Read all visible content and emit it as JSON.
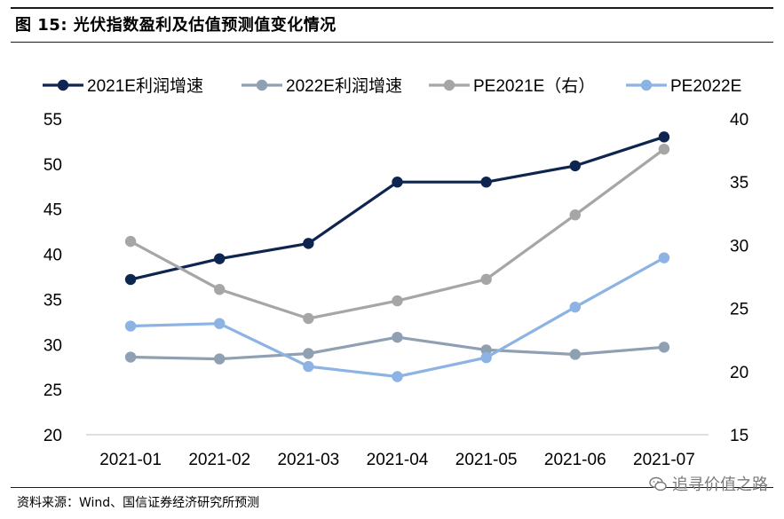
{
  "figure": {
    "title": "图 15: 光伏指数盈利及估值预测值变化情况",
    "source": "资料来源：Wind、国信证券经济研究所预测",
    "watermark": "追寻价值之路"
  },
  "chart_data": {
    "type": "line",
    "title": "",
    "xlabel": "",
    "ylabel": "",
    "categories": [
      "2021-01",
      "2021-02",
      "2021-03",
      "2021-04",
      "2021-05",
      "2021-06",
      "2021-07"
    ],
    "y_left": {
      "ylim": [
        20,
        55
      ],
      "ticks": [
        "55",
        "50",
        "45",
        "40",
        "35",
        "30",
        "25",
        "20"
      ]
    },
    "y_right": {
      "ylim": [
        15,
        40
      ],
      "ticks": [
        "40",
        "35",
        "30",
        "25",
        "20",
        "15"
      ]
    },
    "grid": false,
    "legend_position": "top",
    "series": [
      {
        "name": "2021E利润增速",
        "axis": "left",
        "color": "#0d2550",
        "values": [
          37.2,
          39.5,
          41.2,
          48.0,
          48.0,
          49.8,
          53.0
        ]
      },
      {
        "name": "2022E利润增速",
        "axis": "left",
        "color": "#8fa0b2",
        "values": [
          28.6,
          28.4,
          29.0,
          30.8,
          29.4,
          28.9,
          29.7
        ]
      },
      {
        "name": "PE2021E（右）",
        "axis": "right",
        "color": "#a6a6a6",
        "values": [
          30.3,
          26.5,
          24.2,
          25.6,
          27.3,
          32.4,
          37.6
        ]
      },
      {
        "name": "PE2022E",
        "axis": "right",
        "color": "#8cb3e3",
        "values": [
          23.6,
          23.8,
          20.4,
          19.6,
          21.1,
          25.1,
          29.0
        ]
      }
    ]
  }
}
